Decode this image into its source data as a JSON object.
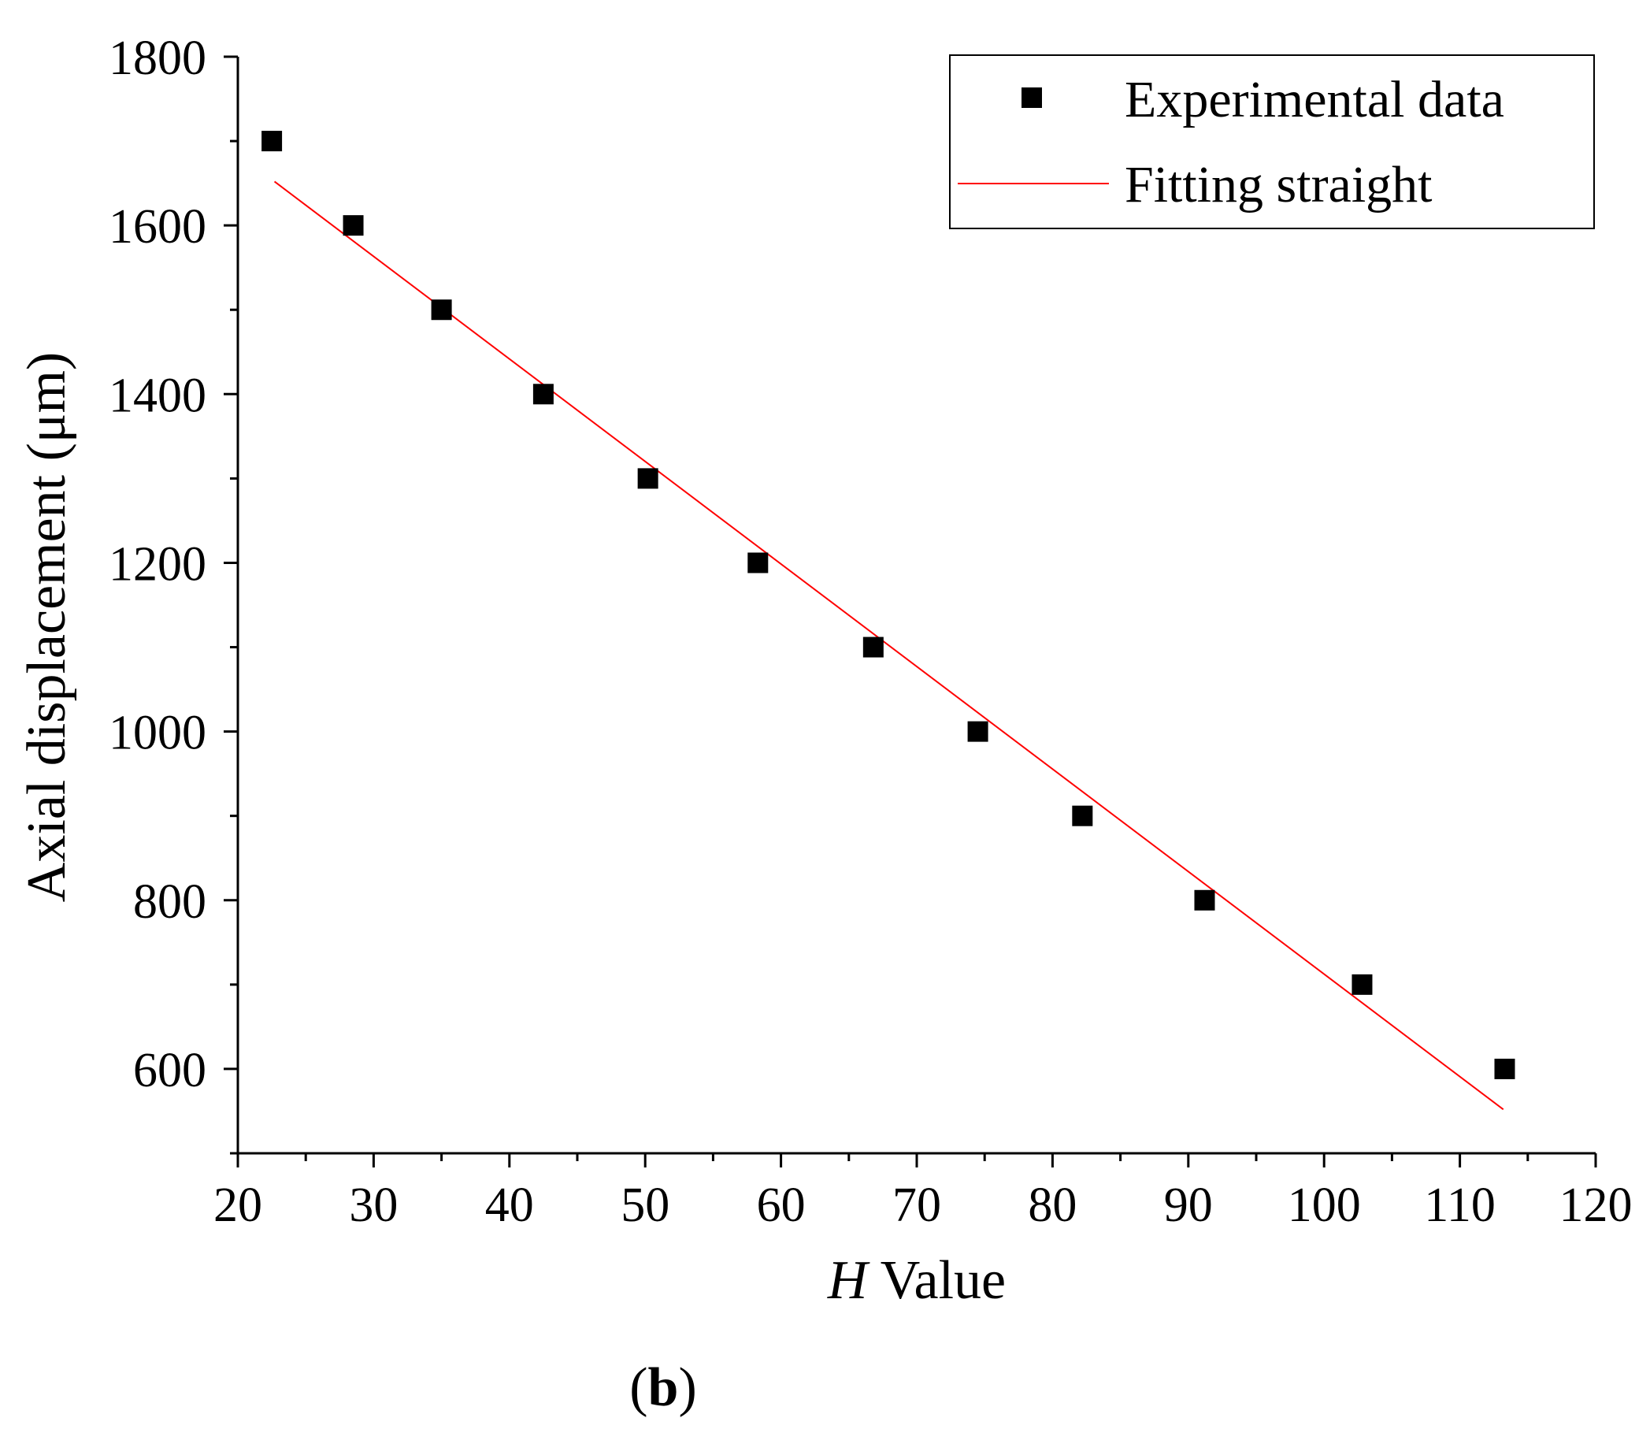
{
  "chart_data": {
    "type": "scatter",
    "title": "",
    "xlabel_italic": "H",
    "xlabel_rest": " Value",
    "ylabel": "Axial displacement (μm)",
    "xlim": [
      20,
      120
    ],
    "ylim": [
      500,
      1800
    ],
    "x_ticks": [
      20,
      30,
      40,
      50,
      60,
      70,
      80,
      90,
      100,
      110,
      120
    ],
    "y_ticks": [
      600,
      800,
      1000,
      1200,
      1400,
      1600,
      1800
    ],
    "x_tick_labels": [
      "20",
      "30",
      "40",
      "50",
      "60",
      "70",
      "80",
      "90",
      "100",
      "110",
      "120"
    ],
    "y_tick_labels": [
      "600",
      "800",
      "1000",
      "1200",
      "1400",
      "1600",
      "1800"
    ],
    "grid": false,
    "legend_position": "top-right",
    "series": [
      {
        "name": "Experimental data",
        "kind": "scatter",
        "marker": "square",
        "color": "#000000",
        "x": [
          22.5,
          28.5,
          35.0,
          42.5,
          50.2,
          58.3,
          66.8,
          74.5,
          82.2,
          91.2,
          102.8,
          113.3
        ],
        "y": [
          1700,
          1600,
          1500,
          1400,
          1300,
          1200,
          1100,
          1000,
          900,
          800,
          700,
          600
        ]
      },
      {
        "name": "Fitting straight",
        "kind": "line",
        "color": "#ff0000",
        "x": [
          22.7,
          113.2
        ],
        "y": [
          1652,
          552
        ]
      }
    ]
  },
  "caption": {
    "open": "(",
    "letter": "b",
    "close": ")"
  }
}
